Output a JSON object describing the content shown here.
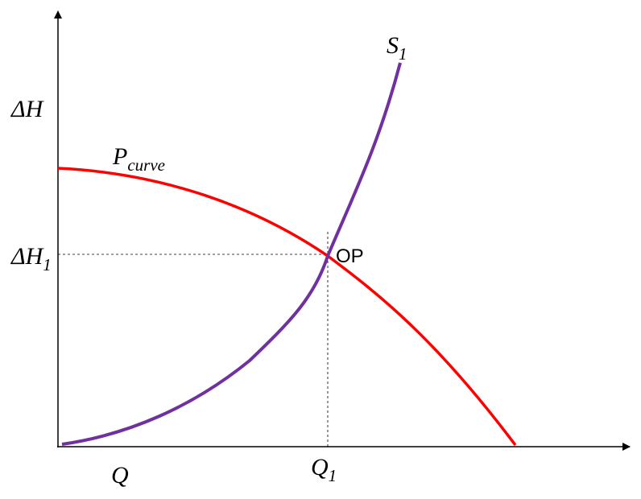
{
  "axes": {
    "y_label": "ΔH",
    "x_label": "Q"
  },
  "y_marker": {
    "base": "ΔH",
    "sub": "1"
  },
  "x_marker": {
    "base": "Q",
    "sub": "1"
  },
  "pump_curve": {
    "base": "P",
    "sub": "curve"
  },
  "system_curve": {
    "base": "S",
    "sub": "1"
  },
  "operating_point": "OP"
}
